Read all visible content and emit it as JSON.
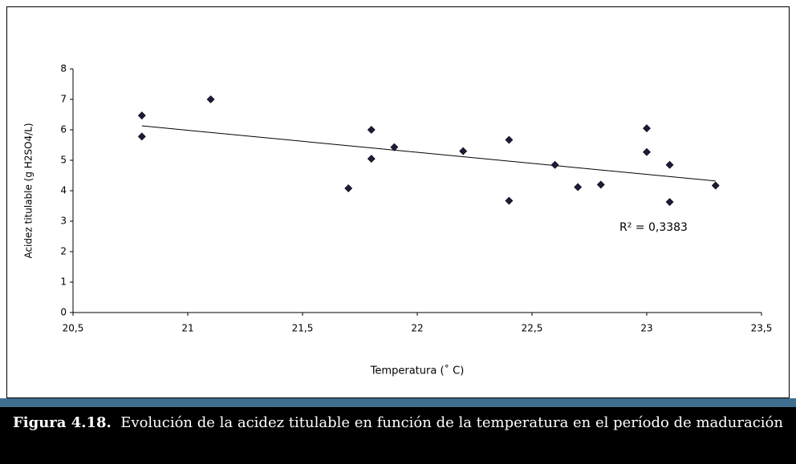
{
  "chart_data": {
    "type": "scatter",
    "y_label": "Acidez titulable (g H2SO4/L)",
    "x_label": "Temperatura   (˚ C)",
    "annotation": "R² = 0,3383",
    "color": "#1c1c3c",
    "x": [
      20.8,
      20.8,
      21.1,
      21.7,
      21.8,
      21.8,
      21.9,
      22.2,
      22.4,
      22.4,
      22.6,
      22.7,
      22.8,
      23.0,
      23.0,
      23.1,
      23.1,
      23.3
    ],
    "values": [
      6.47,
      5.78,
      7.0,
      4.08,
      6.0,
      5.05,
      5.43,
      5.3,
      5.67,
      3.67,
      4.85,
      4.12,
      4.2,
      6.05,
      5.27,
      4.85,
      3.63,
      4.17
    ],
    "trendline": {
      "x": [
        20.8,
        23.3
      ],
      "values": [
        6.13,
        4.32
      ]
    },
    "xlim": [
      20.5,
      23.5
    ],
    "xticks": [
      {
        "value": 20.5,
        "label": "20,5"
      },
      21,
      {
        "value": 21.5,
        "label": "21,5"
      },
      22,
      {
        "value": 22.5,
        "label": "22,5"
      },
      23,
      {
        "value": 23.5,
        "label": "23,5"
      }
    ],
    "ylim": [
      0,
      8
    ],
    "yticks": [
      0,
      1,
      2,
      3,
      4,
      5,
      6,
      7,
      8
    ],
    "grid": false
  },
  "caption": {
    "label": "Figura 4.18.",
    "text": "Evolución de la acidez titulable en función de la temperatura en el período de maduración"
  }
}
